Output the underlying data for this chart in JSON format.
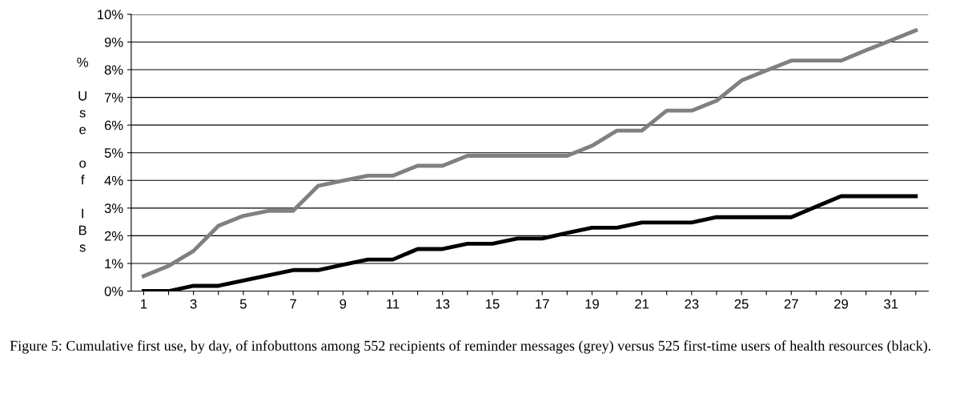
{
  "chart_data": {
    "type": "line",
    "ylabel": "% Use of IBs",
    "categories": [
      "1",
      null,
      "3",
      null,
      "5",
      null,
      "7",
      null,
      "9",
      null,
      "11",
      null,
      "13",
      null,
      "15",
      null,
      "17",
      null,
      "19",
      null,
      "21",
      null,
      "23",
      null,
      "25",
      null,
      "27",
      null,
      "29",
      null,
      "31",
      null
    ],
    "series": [
      {
        "color": "#808080",
        "values": [
          0.54,
          0.91,
          1.45,
          2.36,
          2.72,
          2.9,
          2.9,
          3.8,
          3.99,
          4.17,
          4.17,
          4.53,
          4.53,
          4.89,
          4.89,
          4.89,
          4.89,
          4.89,
          5.25,
          5.8,
          5.8,
          6.52,
          6.52,
          6.88,
          7.61,
          7.97,
          8.33,
          8.33,
          8.33,
          8.7,
          9.06,
          9.42
        ]
      },
      {
        "color": "#000000",
        "values": [
          0,
          0,
          0.19,
          0.19,
          0.38,
          0.57,
          0.76,
          0.76,
          0.95,
          1.14,
          1.14,
          1.52,
          1.52,
          1.71,
          1.71,
          1.9,
          1.9,
          2.1,
          2.29,
          2.29,
          2.48,
          2.48,
          2.48,
          2.67,
          2.67,
          2.67,
          2.67,
          3.05,
          3.43,
          3.43,
          3.43,
          3.43
        ]
      }
    ],
    "ylim": [
      0,
      10
    ],
    "yticks": [
      {
        "value": 0,
        "label": "0%"
      },
      {
        "value": 1,
        "label": "1%"
      },
      {
        "value": 2,
        "label": "2%"
      },
      {
        "value": 3,
        "label": "3%"
      },
      {
        "value": 4,
        "label": "4%"
      },
      {
        "value": 5,
        "label": "5%"
      },
      {
        "value": 6,
        "label": "6%"
      },
      {
        "value": 7,
        "label": "7%"
      },
      {
        "value": 8,
        "label": "8%"
      },
      {
        "value": 9,
        "label": "9%"
      },
      {
        "value": 10,
        "label": "10%"
      }
    ],
    "grid": "y",
    "marker": "none",
    "line_style": "solid",
    "annotations": [
      "Figure 5: Cumulative first use, by day, of infobuttons among 552 recipients of reminder messages (grey) versus 525 first-time users of health resources (black)."
    ]
  }
}
